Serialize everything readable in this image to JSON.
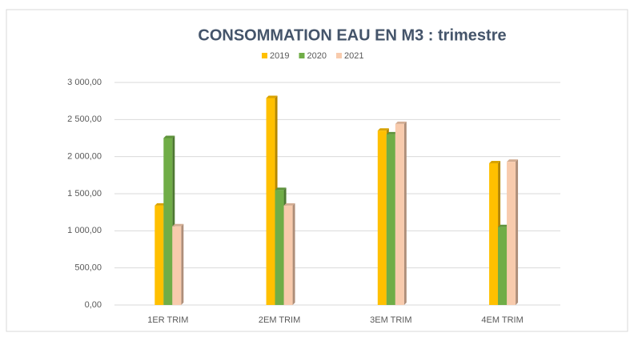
{
  "chart_data": {
    "type": "bar",
    "title": "CONSOMMATION EAU EN M3 : trimestre",
    "categories": [
      "1ER TRIM",
      "2EM TRIM",
      "3EM TRIM",
      "4EM TRIM"
    ],
    "series": [
      {
        "name": "2019",
        "color": "#ffc000",
        "values": [
          1340,
          2790,
          2350,
          1910
        ]
      },
      {
        "name": "2020",
        "color": "#70ad47",
        "values": [
          2250,
          1550,
          2300,
          1050
        ]
      },
      {
        "name": "2021",
        "color": "#f8cbad",
        "values": [
          1060,
          1340,
          2440,
          1930
        ]
      }
    ],
    "ylim": [
      0,
      3000
    ],
    "yticks": [
      {
        "value": 0,
        "label": "0,00"
      },
      {
        "value": 500,
        "label": "500,00"
      },
      {
        "value": 1000,
        "label": "1 000,00"
      },
      {
        "value": 1500,
        "label": "1 500,00"
      },
      {
        "value": 2000,
        "label": "2 000,00"
      },
      {
        "value": 2500,
        "label": "2 500,00"
      },
      {
        "value": 3000,
        "label": "3 000,00"
      }
    ],
    "grid": true,
    "legend": "top"
  }
}
